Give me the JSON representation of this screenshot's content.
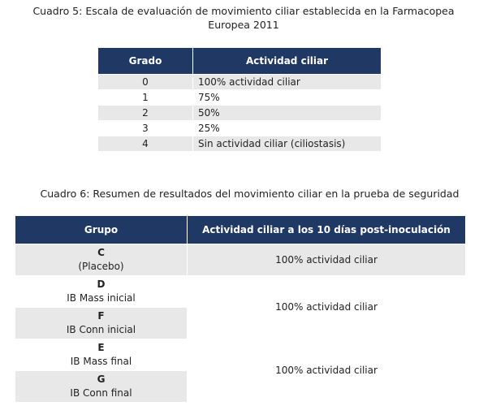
{
  "table5": {
    "caption": "Cuadro 5: Escala de evaluación de movimiento ciliar establecida en la Farmacopea Europea 2011",
    "headers": [
      "Grado",
      "Actividad ciliar"
    ],
    "rows": [
      {
        "grade": "0",
        "activity": "100% actividad ciliar"
      },
      {
        "grade": "1",
        "activity": "75%"
      },
      {
        "grade": "2",
        "activity": "50%"
      },
      {
        "grade": "3",
        "activity": "25%"
      },
      {
        "grade": "4",
        "activity": "Sin actividad ciliar (ciliostasis)"
      }
    ]
  },
  "table6": {
    "caption": "Cuadro 6: Resumen de resultados del movimiento ciliar en la prueba de seguridad",
    "headers": [
      "Grupo",
      "Actividad ciliar a los 10 días post-inoculación"
    ],
    "groups": [
      {
        "code": "C",
        "desc": "(Placebo)"
      },
      {
        "code": "D",
        "desc": "IB Mass inicial"
      },
      {
        "code": "F",
        "desc": "IB Conn inicial"
      },
      {
        "code": "E",
        "desc": "IB Mass final"
      },
      {
        "code": "G",
        "desc": "IB Conn final"
      }
    ],
    "results": [
      "100% actividad ciliar",
      "100% actividad ciliar",
      "100% actividad ciliar"
    ]
  },
  "colors": {
    "header_bg": "#1f3864",
    "row_shade": "#e8e8e8"
  }
}
